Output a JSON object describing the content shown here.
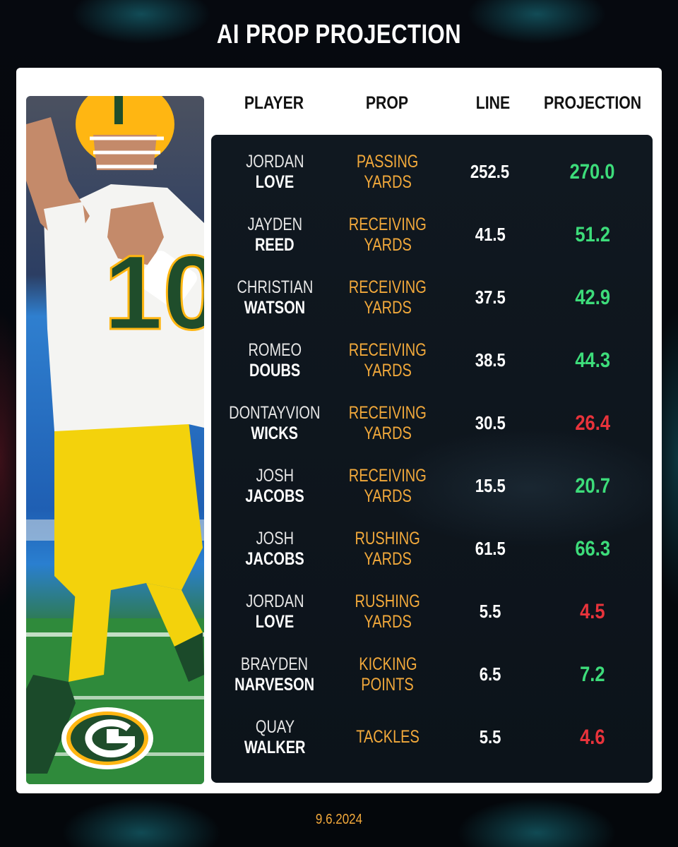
{
  "title": "AI PROP PROJECTION",
  "headers": {
    "player": "PLAYER",
    "prop": "PROP",
    "line": "LINE",
    "projection": "PROJECTION"
  },
  "rows": [
    {
      "first": "JORDAN",
      "last": "LOVE",
      "prop1": "PASSING",
      "prop2": "YARDS",
      "line": "252.5",
      "projection": "270.0",
      "trend": "over"
    },
    {
      "first": "JAYDEN",
      "last": "REED",
      "prop1": "RECEIVING",
      "prop2": "YARDS",
      "line": "41.5",
      "projection": "51.2",
      "trend": "over"
    },
    {
      "first": "CHRISTIAN",
      "last": "WATSON",
      "prop1": "RECEIVING",
      "prop2": "YARDS",
      "line": "37.5",
      "projection": "42.9",
      "trend": "over"
    },
    {
      "first": "ROMEO",
      "last": "DOUBS",
      "prop1": "RECEIVING",
      "prop2": "YARDS",
      "line": "38.5",
      "projection": "44.3",
      "trend": "over"
    },
    {
      "first": "DONTAYVION",
      "last": "WICKS",
      "prop1": "RECEIVING",
      "prop2": "YARDS",
      "line": "30.5",
      "projection": "26.4",
      "trend": "under"
    },
    {
      "first": "JOSH",
      "last": "JACOBS",
      "prop1": "RECEIVING",
      "prop2": "YARDS",
      "line": "15.5",
      "projection": "20.7",
      "trend": "over"
    },
    {
      "first": "JOSH",
      "last": "JACOBS",
      "prop1": "RUSHING",
      "prop2": "YARDS",
      "line": "61.5",
      "projection": "66.3",
      "trend": "over"
    },
    {
      "first": "JORDAN",
      "last": "LOVE",
      "prop1": "RUSHING",
      "prop2": "YARDS",
      "line": "5.5",
      "projection": "4.5",
      "trend": "under"
    },
    {
      "first": "BRAYDEN",
      "last": "NARVESON",
      "prop1": "KICKING",
      "prop2": "POINTS",
      "line": "6.5",
      "projection": "7.2",
      "trend": "over"
    },
    {
      "first": "QUAY",
      "last": "WALKER",
      "prop1": "TACKLES",
      "prop2": "",
      "line": "5.5",
      "projection": "4.6",
      "trend": "under"
    }
  ],
  "colors": {
    "over": "#3ddc7a",
    "under": "#e8333b",
    "prop": "#f2a93b",
    "team_green": "#1f4d2b",
    "team_gold": "#ffb612"
  },
  "photo": {
    "jersey_number": "10",
    "logo_icon": "packers-g-logo-icon"
  },
  "footer": {
    "date": "9.6.2024"
  }
}
